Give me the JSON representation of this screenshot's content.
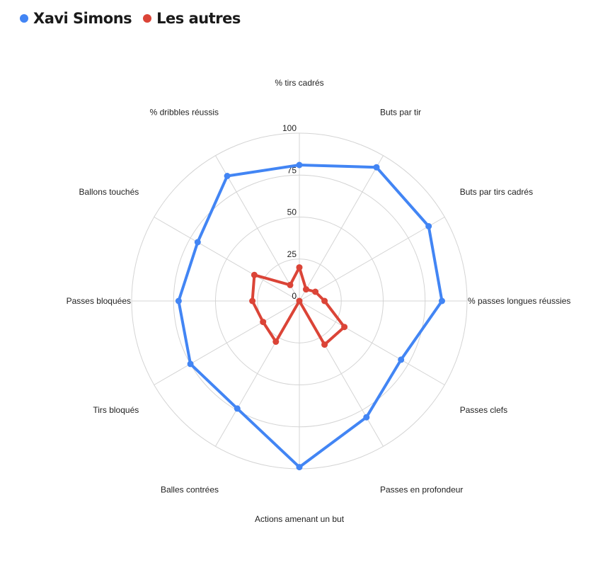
{
  "chart_data": {
    "type": "radar",
    "title": "",
    "legend_position": "top-left",
    "grid": true,
    "rlim": [
      0,
      100
    ],
    "ticks": [
      "0",
      "25",
      "50",
      "75",
      "100"
    ],
    "categories": [
      "% tirs cadrés",
      "Buts par tir",
      "Buts par tirs cadrés",
      "% passes longues réussies",
      "Passes clefs",
      "Passes en profondeur",
      "Actions amenant un but",
      "Balles contrées",
      "Tirs bloqués",
      "Passes bloquées",
      "Ballons touchés",
      "% dribbles réussis"
    ],
    "series": [
      {
        "name": "Xavi Simons",
        "color": "#4285f4",
        "values": [
          81,
          92,
          89,
          85,
          70,
          80,
          99,
          74,
          75,
          72,
          70,
          86
        ]
      },
      {
        "name": "Les autres",
        "color": "#db4437",
        "values": [
          20,
          8,
          11,
          15,
          31,
          30,
          0,
          28,
          25,
          28,
          31,
          11
        ]
      }
    ]
  }
}
